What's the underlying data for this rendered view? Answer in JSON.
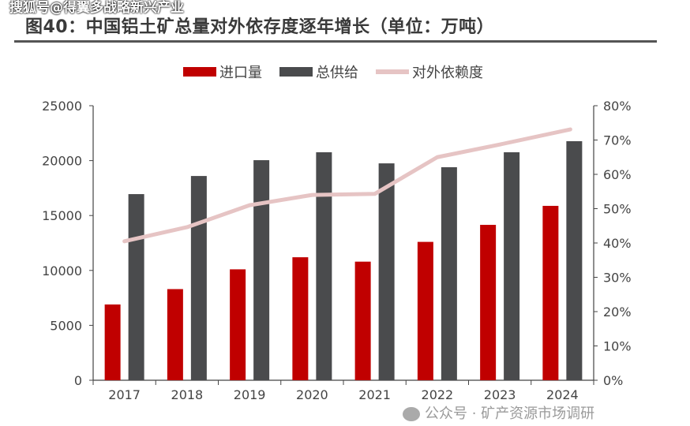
{
  "title": "图40：中国铝土矿总量对外依存度逐年增长（单位：万吨）",
  "watermarks": {
    "top": "搜狐号@得翼多战略新兴产业",
    "bottom": "公众号 · 矿产资源市场调研"
  },
  "colors": {
    "import": "#c00000",
    "supply": "#4a4b4d",
    "dependency": "#e6c4c4"
  },
  "chart_data": {
    "type": "bar",
    "title": "图40：中国铝土矿总量对外依存度逐年增长（单位：万吨）",
    "categories": [
      "2017",
      "2018",
      "2019",
      "2020",
      "2021",
      "2022",
      "2023",
      "2024"
    ],
    "series": [
      {
        "name": "进口量",
        "type": "bar",
        "axis": "left",
        "values": [
          6900,
          8300,
          10100,
          11200,
          10800,
          12600,
          14150,
          15880
        ]
      },
      {
        "name": "总供给",
        "type": "bar",
        "axis": "left",
        "values": [
          16950,
          18600,
          20040,
          20760,
          19750,
          19400,
          20760,
          21770
        ]
      },
      {
        "name": "对外依赖度",
        "type": "line",
        "axis": "right",
        "values": [
          40.5,
          44.6,
          51.0,
          54.0,
          54.3,
          65.0,
          68.7,
          73.1
        ]
      }
    ],
    "ylim": [
      0,
      25000
    ],
    "yticks": [
      "0",
      "5000",
      "10000",
      "15000",
      "20000",
      "25000"
    ],
    "y2lim": [
      0,
      80
    ],
    "y2ticks": [
      "0%",
      "10%",
      "20%",
      "30%",
      "40%",
      "50%",
      "60%",
      "70%",
      "80%"
    ],
    "legend": "top",
    "grid": false
  }
}
